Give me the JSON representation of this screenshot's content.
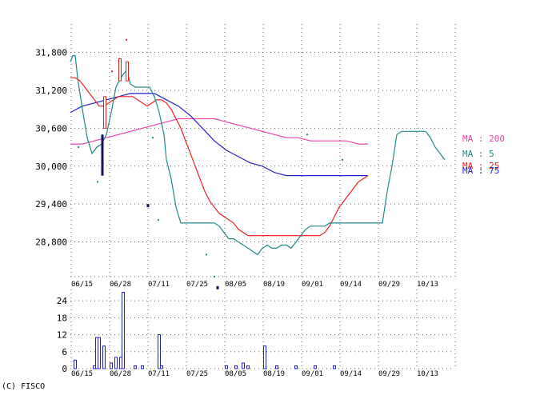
{
  "copyright": "(C) FISCO",
  "colors": {
    "ma200": "#ee44aa",
    "ma5": "#228888",
    "ma25": "#ee2222",
    "ma75": "#2222cc",
    "candle_up": "#dd2222",
    "candle_down": "#111166",
    "volume": "#2222cc",
    "grid": "#666666"
  },
  "chart_data": [
    {
      "type": "line",
      "name": "price",
      "x_ticks": [
        "06/15",
        "06/28",
        "07/11",
        "07/25",
        "08/05",
        "08/19",
        "09/01",
        "09/14",
        "09/29",
        "10/13"
      ],
      "y_ticks": [
        "31,800",
        "31,200",
        "30,600",
        "30,000",
        "29,400",
        "28,800"
      ],
      "ylim": [
        28250,
        32250
      ],
      "series_labels": [
        {
          "key": "ma200",
          "text": "MA : 200"
        },
        {
          "key": "ma5",
          "text": "MA : 5"
        },
        {
          "key": "ma25",
          "text": "MA : 25"
        },
        {
          "key": "ma75",
          "text": "MA : 75"
        }
      ],
      "series": [
        {
          "key": "ma5",
          "points": [
            [
              0,
              31650
            ],
            [
              3,
              31750
            ],
            [
              6,
              31750
            ],
            [
              9,
              31400
            ],
            [
              15,
              30900
            ],
            [
              21,
              30450
            ],
            [
              27,
              30200
            ],
            [
              33,
              30300
            ],
            [
              39,
              30350
            ],
            [
              45,
              30500
            ],
            [
              51,
              30850
            ],
            [
              57,
              31250
            ],
            [
              63,
              31400
            ],
            [
              69,
              31500
            ],
            [
              72,
              31450
            ],
            [
              75,
              31300
            ],
            [
              81,
              31250
            ],
            [
              87,
              31250
            ],
            [
              93,
              31250
            ],
            [
              99,
              31250
            ],
            [
              105,
              31100
            ],
            [
              111,
              30850
            ],
            [
              117,
              30500
            ],
            [
              120,
              30100
            ],
            [
              126,
              29800
            ],
            [
              132,
              29350
            ],
            [
              138,
              29100
            ],
            [
              144,
              29100
            ],
            [
              150,
              29100
            ],
            [
              156,
              29100
            ],
            [
              162,
              29100
            ],
            [
              168,
              29100
            ],
            [
              174,
              29100
            ],
            [
              180,
              29100
            ],
            [
              186,
              29050
            ],
            [
              192,
              28950
            ],
            [
              198,
              28850
            ],
            [
              204,
              28850
            ],
            [
              210,
              28800
            ],
            [
              216,
              28750
            ],
            [
              222,
              28700
            ],
            [
              228,
              28650
            ],
            [
              234,
              28600
            ],
            [
              240,
              28700
            ],
            [
              246,
              28750
            ],
            [
              252,
              28700
            ],
            [
              258,
              28700
            ],
            [
              264,
              28750
            ],
            [
              270,
              28750
            ],
            [
              276,
              28700
            ],
            [
              282,
              28800
            ],
            [
              288,
              28900
            ],
            [
              294,
              29000
            ],
            [
              300,
              29050
            ],
            [
              306,
              29050
            ],
            [
              312,
              29050
            ],
            [
              318,
              29050
            ],
            [
              324,
              29100
            ],
            [
              330,
              29100
            ],
            [
              336,
              29100
            ],
            [
              342,
              29100
            ],
            [
              348,
              29100
            ],
            [
              354,
              29100
            ],
            [
              360,
              29100
            ],
            [
              366,
              29100
            ],
            [
              372,
              29100
            ],
            [
              378,
              29100
            ],
            [
              384,
              29100
            ],
            [
              390,
              29100
            ],
            [
              396,
              29600
            ],
            [
              402,
              30000
            ],
            [
              408,
              30500
            ],
            [
              414,
              30550
            ],
            [
              420,
              30550
            ],
            [
              426,
              30550
            ],
            [
              432,
              30550
            ],
            [
              438,
              30550
            ],
            [
              444,
              30550
            ],
            [
              450,
              30450
            ],
            [
              456,
              30300
            ],
            [
              462,
              30200
            ],
            [
              468,
              30100
            ]
          ]
        },
        {
          "key": "ma25",
          "points": [
            [
              0,
              31400
            ],
            [
              6,
              31400
            ],
            [
              12,
              31350
            ],
            [
              18,
              31250
            ],
            [
              24,
              31150
            ],
            [
              30,
              31050
            ],
            [
              36,
              30950
            ],
            [
              42,
              30950
            ],
            [
              48,
              31000
            ],
            [
              54,
              31050
            ],
            [
              60,
              31100
            ],
            [
              66,
              31100
            ],
            [
              72,
              31100
            ],
            [
              78,
              31100
            ],
            [
              84,
              31050
            ],
            [
              90,
              31000
            ],
            [
              96,
              30950
            ],
            [
              102,
              31000
            ],
            [
              108,
              31050
            ],
            [
              114,
              31050
            ],
            [
              120,
              31000
            ],
            [
              126,
              30900
            ],
            [
              132,
              30750
            ],
            [
              138,
              30600
            ],
            [
              144,
              30400
            ],
            [
              150,
              30200
            ],
            [
              156,
              30000
            ],
            [
              162,
              29800
            ],
            [
              168,
              29600
            ],
            [
              174,
              29450
            ],
            [
              180,
              29350
            ],
            [
              186,
              29250
            ],
            [
              192,
              29200
            ],
            [
              198,
              29150
            ],
            [
              204,
              29100
            ],
            [
              210,
              29000
            ],
            [
              216,
              28950
            ],
            [
              222,
              28900
            ],
            [
              228,
              28900
            ],
            [
              234,
              28900
            ],
            [
              240,
              28900
            ],
            [
              246,
              28900
            ],
            [
              252,
              28900
            ],
            [
              258,
              28900
            ],
            [
              264,
              28900
            ],
            [
              270,
              28900
            ],
            [
              276,
              28900
            ],
            [
              282,
              28900
            ],
            [
              288,
              28900
            ],
            [
              294,
              28900
            ],
            [
              300,
              28900
            ],
            [
              306,
              28900
            ],
            [
              312,
              28900
            ],
            [
              318,
              28950
            ],
            [
              324,
              29050
            ],
            [
              330,
              29200
            ],
            [
              336,
              29350
            ],
            [
              342,
              29450
            ],
            [
              348,
              29550
            ],
            [
              354,
              29650
            ],
            [
              360,
              29750
            ],
            [
              366,
              29800
            ],
            [
              372,
              29850
            ]
          ]
        },
        {
          "key": "ma75",
          "points": [
            [
              0,
              30850
            ],
            [
              15,
              30950
            ],
            [
              30,
              31000
            ],
            [
              45,
              31050
            ],
            [
              60,
              31100
            ],
            [
              75,
              31150
            ],
            [
              90,
              31150
            ],
            [
              105,
              31150
            ],
            [
              120,
              31050
            ],
            [
              135,
              30950
            ],
            [
              150,
              30800
            ],
            [
              165,
              30600
            ],
            [
              180,
              30400
            ],
            [
              195,
              30250
            ],
            [
              210,
              30150
            ],
            [
              225,
              30050
            ],
            [
              240,
              30000
            ],
            [
              255,
              29900
            ],
            [
              270,
              29850
            ],
            [
              285,
              29850
            ],
            [
              300,
              29850
            ],
            [
              315,
              29850
            ],
            [
              330,
              29850
            ],
            [
              345,
              29850
            ],
            [
              360,
              29850
            ],
            [
              372,
              29850
            ]
          ]
        },
        {
          "key": "ma200",
          "points": [
            [
              0,
              30350
            ],
            [
              15,
              30350
            ],
            [
              30,
              30400
            ],
            [
              45,
              30450
            ],
            [
              60,
              30500
            ],
            [
              75,
              30550
            ],
            [
              90,
              30600
            ],
            [
              105,
              30650
            ],
            [
              120,
              30700
            ],
            [
              135,
              30750
            ],
            [
              150,
              30750
            ],
            [
              165,
              30750
            ],
            [
              180,
              30750
            ],
            [
              195,
              30700
            ],
            [
              210,
              30650
            ],
            [
              225,
              30600
            ],
            [
              240,
              30550
            ],
            [
              255,
              30500
            ],
            [
              270,
              30450
            ],
            [
              285,
              30450
            ],
            [
              300,
              30400
            ],
            [
              315,
              30400
            ],
            [
              330,
              30400
            ],
            [
              345,
              30400
            ],
            [
              360,
              30350
            ],
            [
              372,
              30350
            ]
          ]
        }
      ],
      "candles": [
        {
          "t": 40,
          "open": 30500,
          "close": 29850,
          "high": 30500,
          "low": 29850
        },
        {
          "t": 43,
          "open": 30600,
          "close": 31100,
          "high": 31100,
          "low": 30600
        },
        {
          "t": 62,
          "open": 31350,
          "close": 31700,
          "high": 31700,
          "low": 31350
        },
        {
          "t": 71,
          "open": 31350,
          "close": 31650,
          "high": 31650,
          "low": 31350
        },
        {
          "t": 97,
          "open": 29400,
          "close": 29350,
          "high": 29400,
          "low": 29350
        },
        {
          "t": 184,
          "open": 28100,
          "close": 28050,
          "high": 28100,
          "low": 28050
        }
      ],
      "markers": [
        {
          "t": 10,
          "v": 30300,
          "key": "ma5"
        },
        {
          "t": 34,
          "v": 29750,
          "key": "ma5"
        },
        {
          "t": 52,
          "v": 31500,
          "key": "candle_up"
        },
        {
          "t": 70,
          "v": 32000,
          "key": "candle_up"
        },
        {
          "t": 103,
          "v": 30450,
          "key": "ma5"
        },
        {
          "t": 110,
          "v": 29150,
          "key": "ma5"
        },
        {
          "t": 170,
          "v": 28600,
          "key": "ma5"
        },
        {
          "t": 180,
          "v": 28250,
          "key": "ma5"
        },
        {
          "t": 296,
          "v": 30500,
          "key": "ma5"
        },
        {
          "t": 340,
          "v": 30100,
          "key": "ma5"
        }
      ]
    },
    {
      "type": "bar",
      "name": "volume",
      "y_ticks": [
        24,
        18,
        12,
        6,
        0
      ],
      "ylim": [
        0,
        28
      ],
      "x_ticks": [
        "06/15",
        "06/28",
        "07/11",
        "07/25",
        "08/05",
        "08/19",
        "09/01",
        "09/14",
        "09/29",
        "10/13"
      ],
      "bars": [
        [
          6,
          3
        ],
        [
          30,
          1
        ],
        [
          33,
          11
        ],
        [
          36,
          11
        ],
        [
          42,
          8
        ],
        [
          51,
          2
        ],
        [
          57,
          4
        ],
        [
          63,
          4
        ],
        [
          66,
          27
        ],
        [
          81,
          1
        ],
        [
          90,
          1
        ],
        [
          111,
          12
        ],
        [
          114,
          1
        ],
        [
          195,
          1
        ],
        [
          207,
          1
        ],
        [
          216,
          2
        ],
        [
          222,
          1
        ],
        [
          243,
          8
        ],
        [
          258,
          1
        ],
        [
          282,
          1
        ],
        [
          306,
          1
        ],
        [
          330,
          1
        ]
      ]
    }
  ]
}
